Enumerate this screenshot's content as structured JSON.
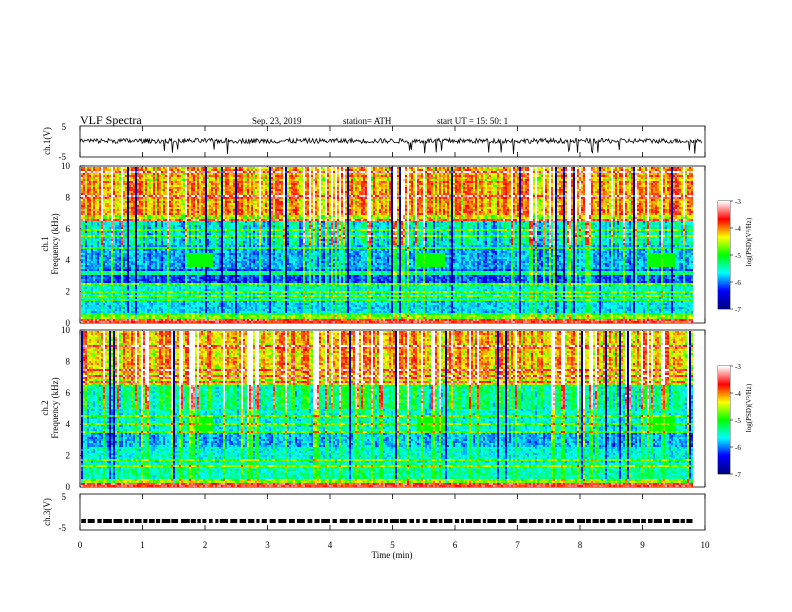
{
  "header": {
    "title": "VLF  Spectra",
    "date": "Sep. 23, 2019",
    "station": "station= ATH",
    "start": "start  UT  =    15: 50: 1"
  },
  "chart_data": [
    {
      "type": "line",
      "title": "",
      "ylabel": "ch.1(V)",
      "ylim": [
        -5,
        5
      ],
      "yticks": [
        "5",
        "-5"
      ],
      "xlim": [
        0,
        10
      ],
      "series": [
        {
          "values_note": "",
          "level": 0.2
        }
      ],
      "grid": false
    },
    {
      "type": "heatmap",
      "ylabel": "Frequency (kHz)",
      "ylabel_prefix": "ch.1",
      "ylim": [
        0,
        10
      ],
      "yticks": [
        "10",
        "8",
        "6",
        "4",
        "2",
        "0"
      ],
      "xlim": [
        0,
        9.8
      ],
      "colorbar": {
        "label": "log(PSD)(V²/Hz)",
        "range": [
          -7,
          -3
        ],
        "ticks": [
          "-3",
          "-4",
          "-5",
          "-6",
          "-7"
        ]
      },
      "bursts_min": [
        1.9,
        5.6,
        9.3
      ],
      "burst_freq_khz": 4
    },
    {
      "type": "heatmap",
      "ylabel": "Frequency (kHz)",
      "ylabel_prefix": "ch.2",
      "ylim": [
        0,
        10
      ],
      "yticks": [
        "10",
        "8",
        "6",
        "4",
        "2",
        "0"
      ],
      "xlim": [
        0,
        9.8
      ],
      "colorbar": {
        "label": "log(PSD)(V²/Hz)",
        "range": [
          -7,
          -3
        ],
        "ticks": [
          "-3",
          "-4",
          "-5",
          "-6",
          "-7"
        ]
      },
      "bursts_min": [
        1.9,
        5.6,
        9.3
      ],
      "burst_freq_khz": 4
    },
    {
      "type": "line",
      "ylabel": "ch.3(V)",
      "ylim": [
        -5,
        5
      ],
      "yticks": [
        "5",
        "-5"
      ],
      "xlim": [
        0,
        10
      ],
      "series": [
        {
          "level": -2.5
        }
      ]
    }
  ],
  "xaxis": {
    "label": "Time  (min)",
    "ticks": [
      "0",
      "1",
      "2",
      "3",
      "4",
      "5",
      "6",
      "7",
      "8",
      "9",
      "10"
    ],
    "range": [
      0,
      10
    ]
  },
  "colors": {
    "colormap": [
      "#000080",
      "#0000ff",
      "#00ffff",
      "#00ff00",
      "#ffff00",
      "#ff0000",
      "#ffffff"
    ]
  }
}
